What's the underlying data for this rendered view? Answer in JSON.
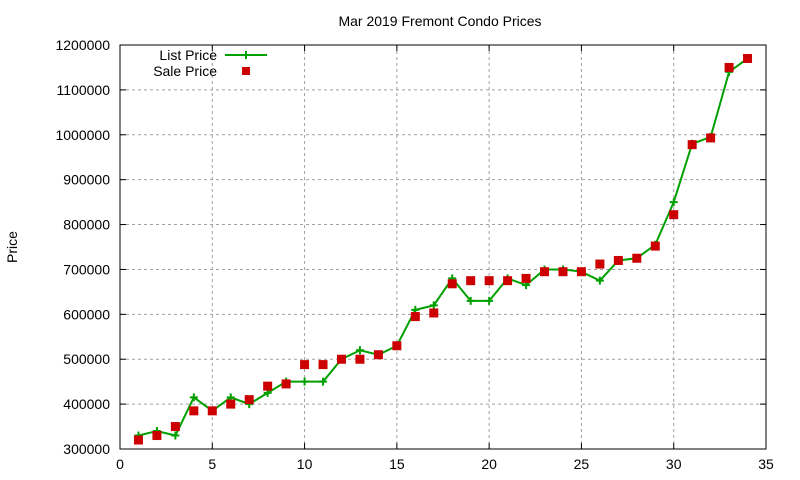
{
  "chart_data": {
    "type": "line",
    "title": "Mar 2019 Fremont Condo Prices",
    "xlabel": "",
    "ylabel": "Price",
    "xlim": [
      0,
      35
    ],
    "ylim": [
      300000,
      1200000
    ],
    "xticks": [
      0,
      5,
      10,
      15,
      20,
      25,
      30,
      35
    ],
    "yticks": [
      300000,
      400000,
      500000,
      600000,
      700000,
      800000,
      900000,
      1000000,
      1100000,
      1200000
    ],
    "grid": true,
    "legend_position": "top-left",
    "x": [
      1,
      2,
      3,
      4,
      5,
      6,
      7,
      8,
      9,
      10,
      11,
      12,
      13,
      14,
      15,
      16,
      17,
      18,
      19,
      20,
      21,
      22,
      23,
      24,
      25,
      26,
      27,
      28,
      29,
      30,
      31,
      32,
      33,
      34
    ],
    "series": [
      {
        "name": "List Price",
        "style": "line+cross",
        "color": "#00a000",
        "values": [
          330000,
          340000,
          330000,
          415000,
          385000,
          415000,
          400000,
          425000,
          450000,
          450000,
          450000,
          500000,
          520000,
          510000,
          530000,
          610000,
          620000,
          680000,
          630000,
          630000,
          680000,
          665000,
          700000,
          700000,
          695000,
          675000,
          720000,
          725000,
          755000,
          850000,
          980000,
          995000,
          1140000,
          1170000
        ]
      },
      {
        "name": "Sale Price",
        "style": "square-points",
        "color": "#cc0000",
        "values": [
          320000,
          330000,
          350000,
          385000,
          385000,
          400000,
          410000,
          440000,
          445000,
          488000,
          488000,
          500000,
          500000,
          510000,
          530000,
          595000,
          603000,
          668000,
          675000,
          675000,
          675000,
          680000,
          695000,
          695000,
          695000,
          712000,
          720000,
          725000,
          752000,
          822000,
          978000,
          993000,
          1150000,
          1170000
        ]
      }
    ]
  }
}
